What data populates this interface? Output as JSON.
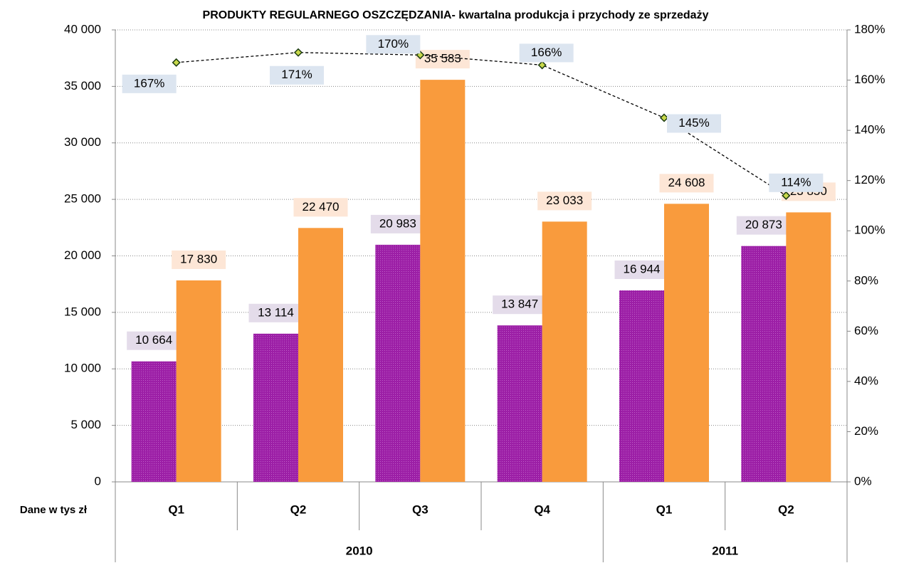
{
  "chart_data": {
    "type": "bar",
    "title": "PRODUKTY REGULARNEGO OSZCZĘDZANIA-  kwartalna produkcja i przychody ze sprzedaży",
    "x_axis_label": "Dane w tys zł",
    "categories": [
      "Q1",
      "Q2",
      "Q3",
      "Q4",
      "Q1",
      "Q2"
    ],
    "category_groups": [
      {
        "label": "2010",
        "size": 4
      },
      {
        "label": "2011",
        "size": 2
      }
    ],
    "ylim": [
      0,
      40000
    ],
    "yticks": [
      {
        "value": 0,
        "label": "0"
      },
      {
        "value": 5000,
        "label": "5 000"
      },
      {
        "value": 10000,
        "label": "10 000"
      },
      {
        "value": 15000,
        "label": "15 000"
      },
      {
        "value": 20000,
        "label": "20 000"
      },
      {
        "value": 25000,
        "label": "25 000"
      },
      {
        "value": 30000,
        "label": "30 000"
      },
      {
        "value": 35000,
        "label": "35 000"
      },
      {
        "value": 40000,
        "label": "40 000"
      }
    ],
    "y2lim": [
      0,
      180
    ],
    "y2ticks": [
      {
        "value": 0,
        "label": "0%"
      },
      {
        "value": 20,
        "label": "20%"
      },
      {
        "value": 40,
        "label": "40%"
      },
      {
        "value": 60,
        "label": "60%"
      },
      {
        "value": 80,
        "label": "80%"
      },
      {
        "value": 100,
        "label": "100%"
      },
      {
        "value": 120,
        "label": "120%"
      },
      {
        "value": 140,
        "label": "140%"
      },
      {
        "value": 160,
        "label": "160%"
      },
      {
        "value": 180,
        "label": "180%"
      }
    ],
    "grid": true,
    "series": [
      {
        "type": "bar",
        "color": "#9c1fa6",
        "label_bg": "#e4dcea",
        "values": [
          10664,
          13114,
          20983,
          13847,
          16944,
          20873
        ],
        "value_labels": [
          "10 664",
          "13 114",
          "20 983",
          "13 847",
          "16 944",
          "20 873"
        ]
      },
      {
        "type": "bar",
        "color": "#f99b3d",
        "label_bg": "#fde6d6",
        "values": [
          17830,
          22470,
          35583,
          23033,
          24608,
          23850
        ],
        "value_labels": [
          "17 830",
          "22 470",
          "35 583",
          "23 033",
          "24 608",
          "23 850"
        ]
      },
      {
        "type": "line",
        "axis": "y2",
        "color": "#000000",
        "marker_color": "#c8d84a",
        "label_bg": "#dce5f0",
        "values": [
          167,
          171,
          170,
          166,
          145,
          114
        ],
        "value_labels": [
          "167%",
          "171%",
          "170%",
          "166%",
          "145%",
          "114%"
        ]
      }
    ]
  }
}
